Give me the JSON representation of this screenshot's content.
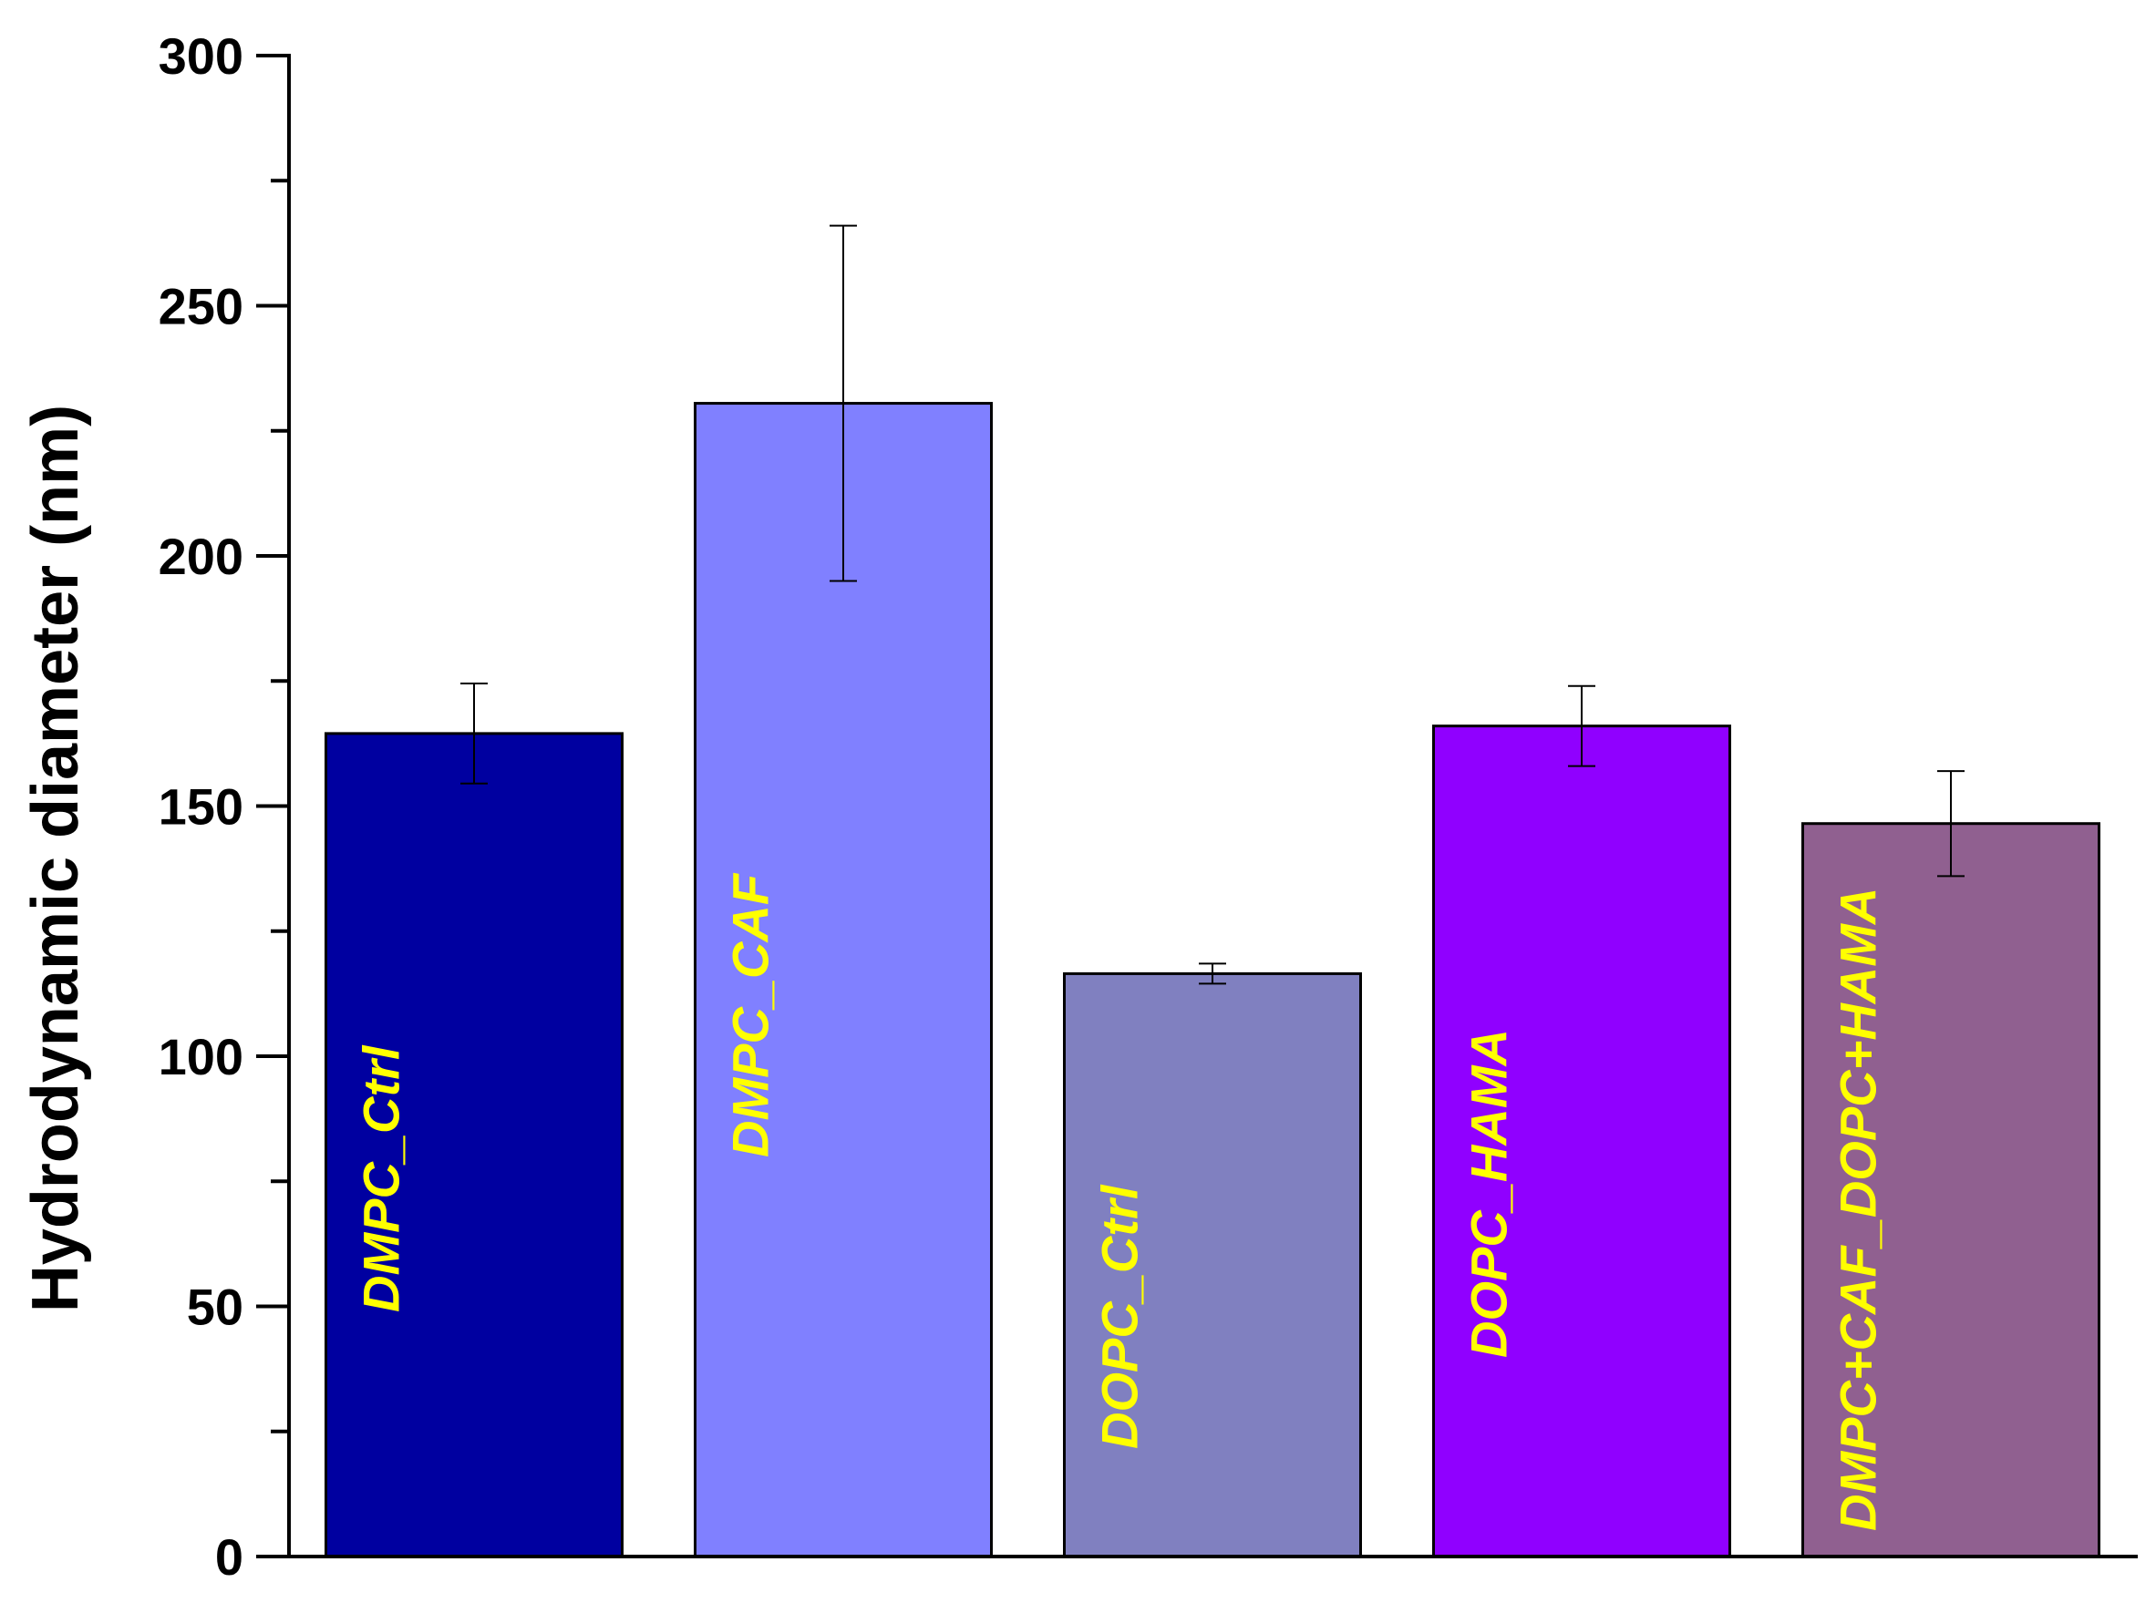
{
  "chart_data": {
    "type": "bar",
    "title": "",
    "xlabel": "",
    "ylabel": "Hydrodynamic diameter (nm)",
    "ylim": [
      0,
      300
    ],
    "yticks": [
      "0",
      "50",
      "100",
      "150",
      "200",
      "250",
      "300"
    ],
    "categories": [
      "DMPC_Ctrl",
      "DMPC_CAF",
      "DOPC_Ctrl",
      "DOPC_HAMA",
      "DMPC+CAF_DOPC+HAMA"
    ],
    "values": [
      164.5,
      230.5,
      116.5,
      166,
      146.5
    ],
    "errors": [
      10,
      35.5,
      2,
      8,
      10.5
    ],
    "bar_colors": [
      "#0000a0",
      "#8080ff",
      "#8080c0",
      "#9000ff",
      "#906090"
    ],
    "label_color": "#ffff00",
    "grid": false,
    "legend": "none"
  }
}
